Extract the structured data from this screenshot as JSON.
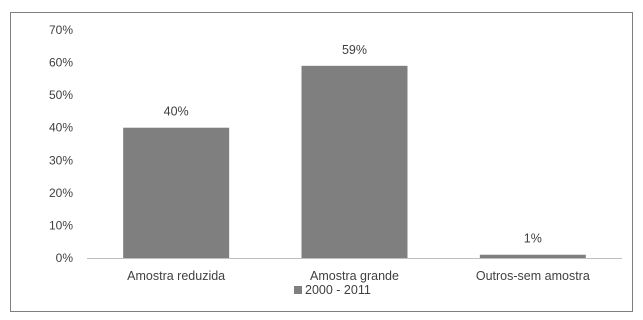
{
  "chart_data": {
    "type": "bar",
    "categories": [
      "Amostra reduzida",
      "Amostra grande",
      "Outros-sem amostra"
    ],
    "series": [
      {
        "name": "2000 - 2011",
        "values": [
          40,
          59,
          1
        ],
        "data_labels": [
          "40%",
          "59%",
          "1%"
        ],
        "color": "#7f7f7f"
      }
    ],
    "ylim": [
      0,
      70
    ],
    "y_ticks": [
      0,
      10,
      20,
      30,
      40,
      50,
      60,
      70
    ],
    "y_tick_labels": [
      "0%",
      "10%",
      "20%",
      "30%",
      "40%",
      "50%",
      "60%",
      "70%"
    ],
    "grid": false,
    "legend": "bottom",
    "axis_color": "#bfbfbf",
    "text_color": "#404040"
  }
}
